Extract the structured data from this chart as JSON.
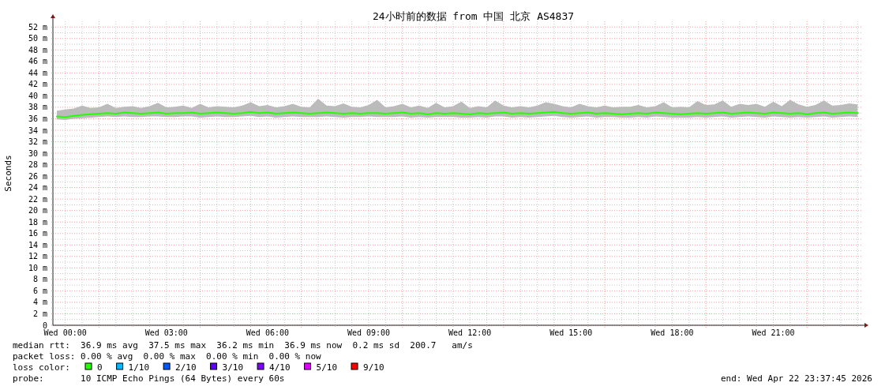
{
  "chart_data": {
    "type": "line",
    "title": "24小时前的数据 from 中国 北京 AS4837",
    "ylabel": "Seconds",
    "xlim": [
      "2026-04-21T23:38",
      "2026-04-22T23:38"
    ],
    "ylim": [
      0,
      53
    ],
    "xticks": [
      {
        "value": "2026-04-22T00:00",
        "label": "Wed 00:00"
      },
      {
        "value": "2026-04-22T00:30",
        "label": null
      },
      {
        "value": "2026-04-22T01:30",
        "label": null
      },
      {
        "value": "2026-04-22T02:00",
        "label": null
      },
      {
        "value": "2026-04-22T02:30",
        "label": null
      },
      {
        "value": "2026-04-22T03:00",
        "label": "Wed 03:00"
      },
      {
        "value": "2026-04-22T03:30",
        "label": null
      },
      {
        "value": "2026-04-22T04:30",
        "label": null
      },
      {
        "value": "2026-04-22T05:00",
        "label": null
      },
      {
        "value": "2026-04-22T05:30",
        "label": null
      },
      {
        "value": "2026-04-22T06:00",
        "label": "Wed 06:00"
      },
      {
        "value": "2026-04-22T06:30",
        "label": null
      },
      {
        "value": "2026-04-22T07:30",
        "label": null
      },
      {
        "value": "2026-04-22T08:00",
        "label": null
      },
      {
        "value": "2026-04-22T08:30",
        "label": null
      },
      {
        "value": "2026-04-22T09:00",
        "label": "Wed 09:00"
      },
      {
        "value": "2026-04-22T09:30",
        "label": null
      },
      {
        "value": "2026-04-22T10:30",
        "label": null
      },
      {
        "value": "2026-04-22T11:00",
        "label": null
      },
      {
        "value": "2026-04-22T11:30",
        "label": null
      },
      {
        "value": "2026-04-22T12:00",
        "label": "Wed 12:00"
      },
      {
        "value": "2026-04-22T12:30",
        "label": null
      },
      {
        "value": "2026-04-22T13:30",
        "label": null
      },
      {
        "value": "2026-04-22T14:00",
        "label": null
      },
      {
        "value": "2026-04-22T14:30",
        "label": null
      },
      {
        "value": "2026-04-22T15:00",
        "label": "Wed 15:00"
      },
      {
        "value": "2026-04-22T15:30",
        "label": null
      },
      {
        "value": "2026-04-22T16:30",
        "label": null
      },
      {
        "value": "2026-04-22T17:00",
        "label": null
      },
      {
        "value": "2026-04-22T17:30",
        "label": null
      },
      {
        "value": "2026-04-22T18:00",
        "label": "Wed 18:00"
      },
      {
        "value": "2026-04-22T18:30",
        "label": null
      },
      {
        "value": "2026-04-22T19:30",
        "label": null
      },
      {
        "value": "2026-04-22T20:00",
        "label": null
      },
      {
        "value": "2026-04-22T20:30",
        "label": null
      },
      {
        "value": "2026-04-22T21:00",
        "label": "Wed 21:00"
      },
      {
        "value": "2026-04-22T21:30",
        "label": null
      },
      {
        "value": "2026-04-22T22:30",
        "label": null
      },
      {
        "value": "2026-04-22T23:00",
        "label": null
      },
      {
        "value": "2026-04-22T23:30",
        "label": null
      }
    ],
    "yticks": [
      0,
      {
        "value": 1,
        "label": null
      },
      {
        "value": 2,
        "label": "2 m"
      },
      {
        "value": 3,
        "label": null
      },
      {
        "value": 4,
        "label": "4 m"
      },
      {
        "value": 5,
        "label": null
      },
      {
        "value": 6,
        "label": "6 m"
      },
      {
        "value": 7,
        "label": null
      },
      {
        "value": 8,
        "label": "8 m"
      },
      {
        "value": 9,
        "label": null
      },
      {
        "value": 10,
        "label": "10 m"
      },
      {
        "value": 11,
        "label": null
      },
      {
        "value": 12,
        "label": "12 m"
      },
      {
        "value": 13,
        "label": null
      },
      {
        "value": 14,
        "label": "14 m"
      },
      {
        "value": 15,
        "label": null
      },
      {
        "value": 16,
        "label": "16 m"
      },
      {
        "value": 17,
        "label": null
      },
      {
        "value": 18,
        "label": "18 m"
      },
      {
        "value": 19,
        "label": null
      },
      {
        "value": 20,
        "label": "20 m"
      },
      {
        "value": 21,
        "label": null
      },
      {
        "value": 22,
        "label": "22 m"
      },
      {
        "value": 23,
        "label": null
      },
      {
        "value": 24,
        "label": "24 m"
      },
      {
        "value": 25,
        "label": null
      },
      {
        "value": 26,
        "label": "26 m"
      },
      {
        "value": 27,
        "label": null
      },
      {
        "value": 28,
        "label": "28 m"
      },
      {
        "value": 29,
        "label": null
      },
      {
        "value": 30,
        "label": "30 m"
      },
      {
        "value": 31,
        "label": null
      },
      {
        "value": 32,
        "label": "32 m"
      },
      {
        "value": 33,
        "label": null
      },
      {
        "value": 34,
        "label": "34 m"
      },
      {
        "value": 35,
        "label": null
      },
      {
        "value": 36,
        "label": "36 m"
      },
      {
        "value": 37,
        "label": null
      },
      {
        "value": 38,
        "label": "38 m"
      },
      {
        "value": 39,
        "label": null
      },
      {
        "value": 40,
        "label": "40 m"
      },
      {
        "value": 41,
        "label": null
      },
      {
        "value": 42,
        "label": "42 m"
      },
      {
        "value": 43,
        "label": null
      },
      {
        "value": 44,
        "label": "44 m"
      },
      {
        "value": 45,
        "label": null
      },
      {
        "value": 46,
        "label": "46 m"
      },
      {
        "value": 47,
        "label": null
      },
      {
        "value": 48,
        "label": "48 m"
      },
      {
        "value": 49,
        "label": null
      },
      {
        "value": 50,
        "label": "50 m"
      },
      {
        "value": 51,
        "label": null
      },
      {
        "value": 52,
        "label": "52 m"
      }
    ],
    "grid": true,
    "legend": "bottom",
    "legend_title": "loss color:",
    "ref_lines": [
      {
        "axis": "x",
        "value": "2026-04-22T01:00",
        "color": "#ff9999",
        "line_style": "dotted"
      },
      {
        "axis": "x",
        "value": "2026-04-22T04:00",
        "color": "#ff9999",
        "line_style": "dotted"
      },
      {
        "axis": "x",
        "value": "2026-04-22T07:00",
        "color": "#ff9999",
        "line_style": "dotted"
      },
      {
        "axis": "x",
        "value": "2026-04-22T10:00",
        "color": "#ff9999",
        "line_style": "dotted"
      },
      {
        "axis": "x",
        "value": "2026-04-22T13:00",
        "color": "#ff9999",
        "line_style": "dotted"
      },
      {
        "axis": "x",
        "value": "2026-04-22T16:00",
        "color": "#ff9999",
        "line_style": "dotted"
      },
      {
        "axis": "x",
        "value": "2026-04-22T19:00",
        "color": "#ff9999",
        "line_style": "dotted"
      },
      {
        "axis": "x",
        "value": "2026-04-22T22:00",
        "color": "#ff9999",
        "line_style": "dotted"
      }
    ],
    "x": [
      "2026-04-21T23:45",
      "2026-04-22T00:00",
      "2026-04-22T00:15",
      "2026-04-22T00:30",
      "2026-04-22T00:45",
      "2026-04-22T01:00",
      "2026-04-22T01:15",
      "2026-04-22T01:30",
      "2026-04-22T01:45",
      "2026-04-22T02:00",
      "2026-04-22T02:15",
      "2026-04-22T02:30",
      "2026-04-22T02:45",
      "2026-04-22T03:00",
      "2026-04-22T03:15",
      "2026-04-22T03:30",
      "2026-04-22T03:45",
      "2026-04-22T04:00",
      "2026-04-22T04:15",
      "2026-04-22T04:30",
      "2026-04-22T04:45",
      "2026-04-22T05:00",
      "2026-04-22T05:15",
      "2026-04-22T05:30",
      "2026-04-22T05:45",
      "2026-04-22T06:00",
      "2026-04-22T06:15",
      "2026-04-22T06:30",
      "2026-04-22T06:45",
      "2026-04-22T07:00",
      "2026-04-22T07:15",
      "2026-04-22T07:30",
      "2026-04-22T07:45",
      "2026-04-22T08:00",
      "2026-04-22T08:15",
      "2026-04-22T08:30",
      "2026-04-22T08:45",
      "2026-04-22T09:00",
      "2026-04-22T09:15",
      "2026-04-22T09:30",
      "2026-04-22T09:45",
      "2026-04-22T10:00",
      "2026-04-22T10:15",
      "2026-04-22T10:30",
      "2026-04-22T10:45",
      "2026-04-22T11:00",
      "2026-04-22T11:15",
      "2026-04-22T11:30",
      "2026-04-22T11:45",
      "2026-04-22T12:00",
      "2026-04-22T12:15",
      "2026-04-22T12:30",
      "2026-04-22T12:45",
      "2026-04-22T13:00",
      "2026-04-22T13:15",
      "2026-04-22T13:30",
      "2026-04-22T13:45",
      "2026-04-22T14:00",
      "2026-04-22T14:15",
      "2026-04-22T14:30",
      "2026-04-22T14:45",
      "2026-04-22T15:00",
      "2026-04-22T15:15",
      "2026-04-22T15:30",
      "2026-04-22T15:45",
      "2026-04-22T16:00",
      "2026-04-22T16:15",
      "2026-04-22T16:30",
      "2026-04-22T16:45",
      "2026-04-22T17:00",
      "2026-04-22T17:15",
      "2026-04-22T17:30",
      "2026-04-22T17:45",
      "2026-04-22T18:00",
      "2026-04-22T18:15",
      "2026-04-22T18:30",
      "2026-04-22T18:45",
      "2026-04-22T19:00",
      "2026-04-22T19:15",
      "2026-04-22T19:30",
      "2026-04-22T19:45",
      "2026-04-22T20:00",
      "2026-04-22T20:15",
      "2026-04-22T20:30",
      "2026-04-22T20:45",
      "2026-04-22T21:00",
      "2026-04-22T21:15",
      "2026-04-22T21:30",
      "2026-04-22T21:45",
      "2026-04-22T22:00",
      "2026-04-22T22:15",
      "2026-04-22T22:30",
      "2026-04-22T22:45",
      "2026-04-22T23:00",
      "2026-04-22T23:15",
      "2026-04-22T23:30"
    ],
    "series": [
      {
        "name": "0",
        "color": "#26ff00",
        "values": [
          36.4,
          36.3,
          36.5,
          36.7,
          36.8,
          36.9,
          37.0,
          36.9,
          37.1,
          37.0,
          36.9,
          37.0,
          37.1,
          36.9,
          37.0,
          37.0,
          37.1,
          36.9,
          37.0,
          37.1,
          37.0,
          36.9,
          37.0,
          37.2,
          37.0,
          37.1,
          36.9,
          37.0,
          37.1,
          37.0,
          36.9,
          37.0,
          37.1,
          37.0,
          36.9,
          37.0,
          36.9,
          37.0,
          37.0,
          36.9,
          37.0,
          37.1,
          36.9,
          37.0,
          36.8,
          37.0,
          36.9,
          37.0,
          36.9,
          36.8,
          37.0,
          36.9,
          37.0,
          37.1,
          36.9,
          37.0,
          36.9,
          37.0,
          37.1,
          37.2,
          37.0,
          36.9,
          37.0,
          37.1,
          36.9,
          37.0,
          36.9,
          36.8,
          36.9,
          37.0,
          36.9,
          37.1,
          37.0,
          36.9,
          36.8,
          36.9,
          37.0,
          36.9,
          37.0,
          37.1,
          36.9,
          37.0,
          37.1,
          37.0,
          36.9,
          37.1,
          37.0,
          36.9,
          37.0,
          36.8,
          37.0,
          37.1,
          36.9,
          37.0,
          37.1,
          37.0
        ],
        "lower": [
          35.9,
          35.8,
          36.0,
          36.1,
          36.2,
          36.3,
          36.4,
          36.3,
          36.4,
          36.3,
          36.3,
          36.4,
          36.4,
          36.3,
          36.3,
          36.4,
          36.4,
          36.2,
          36.3,
          36.4,
          36.3,
          36.3,
          36.4,
          36.5,
          36.3,
          36.4,
          36.2,
          36.3,
          36.4,
          36.3,
          36.3,
          36.3,
          36.4,
          36.3,
          36.2,
          36.3,
          36.3,
          36.4,
          36.3,
          36.3,
          36.3,
          36.4,
          36.2,
          36.3,
          36.2,
          36.3,
          36.3,
          36.3,
          36.2,
          36.2,
          36.3,
          36.2,
          36.4,
          36.4,
          36.2,
          36.3,
          36.2,
          36.3,
          36.4,
          36.5,
          36.3,
          36.2,
          36.3,
          36.4,
          36.2,
          36.3,
          36.3,
          36.2,
          36.2,
          36.3,
          36.2,
          36.4,
          36.3,
          36.2,
          36.2,
          36.2,
          36.3,
          36.2,
          36.3,
          36.4,
          36.2,
          36.3,
          36.4,
          36.3,
          36.2,
          36.4,
          36.3,
          36.2,
          36.3,
          36.2,
          36.3,
          36.4,
          36.2,
          36.3,
          36.4,
          36.3
        ],
        "upper": [
          37.4,
          37.6,
          37.8,
          38.3,
          37.9,
          38.0,
          38.6,
          37.9,
          38.1,
          38.2,
          37.9,
          38.2,
          38.8,
          38.0,
          38.1,
          38.3,
          37.9,
          38.6,
          38.0,
          38.2,
          38.1,
          38.0,
          38.3,
          38.9,
          38.2,
          38.4,
          38.0,
          38.2,
          38.6,
          38.1,
          38.0,
          39.5,
          38.3,
          38.2,
          38.7,
          38.1,
          38.0,
          38.4,
          39.3,
          38.0,
          38.2,
          38.6,
          38.0,
          38.3,
          37.9,
          38.8,
          38.0,
          38.2,
          39.0,
          37.9,
          38.2,
          38.0,
          39.2,
          38.3,
          38.0,
          38.2,
          38.0,
          38.3,
          38.9,
          38.6,
          38.2,
          38.0,
          38.6,
          38.2,
          38.0,
          38.3,
          38.0,
          38.1,
          38.1,
          38.4,
          38.0,
          38.2,
          38.9,
          38.0,
          38.1,
          38.0,
          39.1,
          38.4,
          38.5,
          39.2,
          38.1,
          38.6,
          38.4,
          38.6,
          38.1,
          39.0,
          38.2,
          39.3,
          38.5,
          38.1,
          38.4,
          39.2,
          38.3,
          38.4,
          38.7,
          38.5
        ]
      },
      {
        "name": "1/10",
        "color": "#00b8ff",
        "values": [
          null,
          null,
          null,
          null,
          null,
          null,
          null,
          null,
          null,
          null,
          null,
          null,
          null,
          null,
          null,
          null,
          null,
          null,
          null,
          null,
          null,
          null,
          null,
          null,
          null,
          null,
          null,
          null,
          null,
          null,
          null,
          null,
          null,
          null,
          null,
          null,
          null,
          null,
          null,
          null,
          null,
          null,
          null,
          null,
          null,
          null,
          null,
          null,
          null,
          null,
          null,
          null,
          null,
          null,
          null,
          null,
          null,
          null,
          null,
          null,
          null,
          null,
          null,
          null,
          null,
          null,
          null,
          null,
          null,
          null,
          null,
          null,
          null,
          null,
          null,
          null,
          null,
          null,
          null,
          null,
          null,
          null,
          null,
          null,
          null,
          null,
          null,
          null,
          null,
          null,
          null,
          null,
          null,
          null,
          null,
          null
        ]
      },
      {
        "name": "2/10",
        "color": "#0059ff",
        "values": [
          null,
          null,
          null,
          null,
          null,
          null,
          null,
          null,
          null,
          null,
          null,
          null,
          null,
          null,
          null,
          null,
          null,
          null,
          null,
          null,
          null,
          null,
          null,
          null,
          null,
          null,
          null,
          null,
          null,
          null,
          null,
          null,
          null,
          null,
          null,
          null,
          null,
          null,
          null,
          null,
          null,
          null,
          null,
          null,
          null,
          null,
          null,
          null,
          null,
          null,
          null,
          null,
          null,
          null,
          null,
          null,
          null,
          null,
          null,
          null,
          null,
          null,
          null,
          null,
          null,
          null,
          null,
          null,
          null,
          null,
          null,
          null,
          null,
          null,
          null,
          null,
          null,
          null,
          null,
          null,
          null,
          null,
          null,
          null,
          null,
          null,
          null,
          null,
          null,
          null,
          null,
          null,
          null,
          null,
          null,
          null
        ]
      },
      {
        "name": "3/10",
        "color": "#5e00ff",
        "values": [
          null,
          null,
          null,
          null,
          null,
          null,
          null,
          null,
          null,
          null,
          null,
          null,
          null,
          null,
          null,
          null,
          null,
          null,
          null,
          null,
          null,
          null,
          null,
          null,
          null,
          null,
          null,
          null,
          null,
          null,
          null,
          null,
          null,
          null,
          null,
          null,
          null,
          null,
          null,
          null,
          null,
          null,
          null,
          null,
          null,
          null,
          null,
          null,
          null,
          null,
          null,
          null,
          null,
          null,
          null,
          null,
          null,
          null,
          null,
          null,
          null,
          null,
          null,
          null,
          null,
          null,
          null,
          null,
          null,
          null,
          null,
          null,
          null,
          null,
          null,
          null,
          null,
          null,
          null,
          null,
          null,
          null,
          null,
          null,
          null,
          null,
          null,
          null,
          null,
          null,
          null,
          null,
          null,
          null,
          null,
          null
        ]
      },
      {
        "name": "4/10",
        "color": "#7e00ff",
        "values": [
          null,
          null,
          null,
          null,
          null,
          null,
          null,
          null,
          null,
          null,
          null,
          null,
          null,
          null,
          null,
          null,
          null,
          null,
          null,
          null,
          null,
          null,
          null,
          null,
          null,
          null,
          null,
          null,
          null,
          null,
          null,
          null,
          null,
          null,
          null,
          null,
          null,
          null,
          null,
          null,
          null,
          null,
          null,
          null,
          null,
          null,
          null,
          null,
          null,
          null,
          null,
          null,
          null,
          null,
          null,
          null,
          null,
          null,
          null,
          null,
          null,
          null,
          null,
          null,
          null,
          null,
          null,
          null,
          null,
          null,
          null,
          null,
          null,
          null,
          null,
          null,
          null,
          null,
          null,
          null,
          null,
          null,
          null,
          null,
          null,
          null,
          null,
          null,
          null,
          null,
          null,
          null,
          null,
          null,
          null,
          null
        ]
      },
      {
        "name": "5/10",
        "color": "#dd00ff",
        "values": [
          null,
          null,
          null,
          null,
          null,
          null,
          null,
          null,
          null,
          null,
          null,
          null,
          null,
          null,
          null,
          null,
          null,
          null,
          null,
          null,
          null,
          null,
          null,
          null,
          null,
          null,
          null,
          null,
          null,
          null,
          null,
          null,
          null,
          null,
          null,
          null,
          null,
          null,
          null,
          null,
          null,
          null,
          null,
          null,
          null,
          null,
          null,
          null,
          null,
          null,
          null,
          null,
          null,
          null,
          null,
          null,
          null,
          null,
          null,
          null,
          null,
          null,
          null,
          null,
          null,
          null,
          null,
          null,
          null,
          null,
          null,
          null,
          null,
          null,
          null,
          null,
          null,
          null,
          null,
          null,
          null,
          null,
          null,
          null,
          null,
          null,
          null,
          null,
          null,
          null,
          null,
          null,
          null,
          null,
          null,
          null
        ]
      },
      {
        "name": "9/10",
        "color": "#ff0000",
        "values": [
          null,
          null,
          null,
          null,
          null,
          null,
          null,
          null,
          null,
          null,
          null,
          null,
          null,
          null,
          null,
          null,
          null,
          null,
          null,
          null,
          null,
          null,
          null,
          null,
          null,
          null,
          null,
          null,
          null,
          null,
          null,
          null,
          null,
          null,
          null,
          null,
          null,
          null,
          null,
          null,
          null,
          null,
          null,
          null,
          null,
          null,
          null,
          null,
          null,
          null,
          null,
          null,
          null,
          null,
          null,
          null,
          null,
          null,
          null,
          null,
          null,
          null,
          null,
          null,
          null,
          null,
          null,
          null,
          null,
          null,
          null,
          null,
          null,
          null,
          null,
          null,
          null,
          null,
          null,
          null,
          null,
          null,
          null,
          null,
          null,
          null,
          null,
          null,
          null,
          null,
          null,
          null,
          null,
          null,
          null,
          null
        ]
      }
    ],
    "annotations": [
      "median rtt:  36.9 ms avg  37.5 ms max  36.2 ms min  36.9 ms now  0.2 ms sd  200.7   am/s",
      "packet loss: 0.00 % avg  0.00 % max  0.00 % min  0.00 % now",
      "probe:       10 ICMP Echo Pings (64 Bytes) every 60s",
      "end: Wed Apr 22 23:37:45 2026"
    ]
  }
}
